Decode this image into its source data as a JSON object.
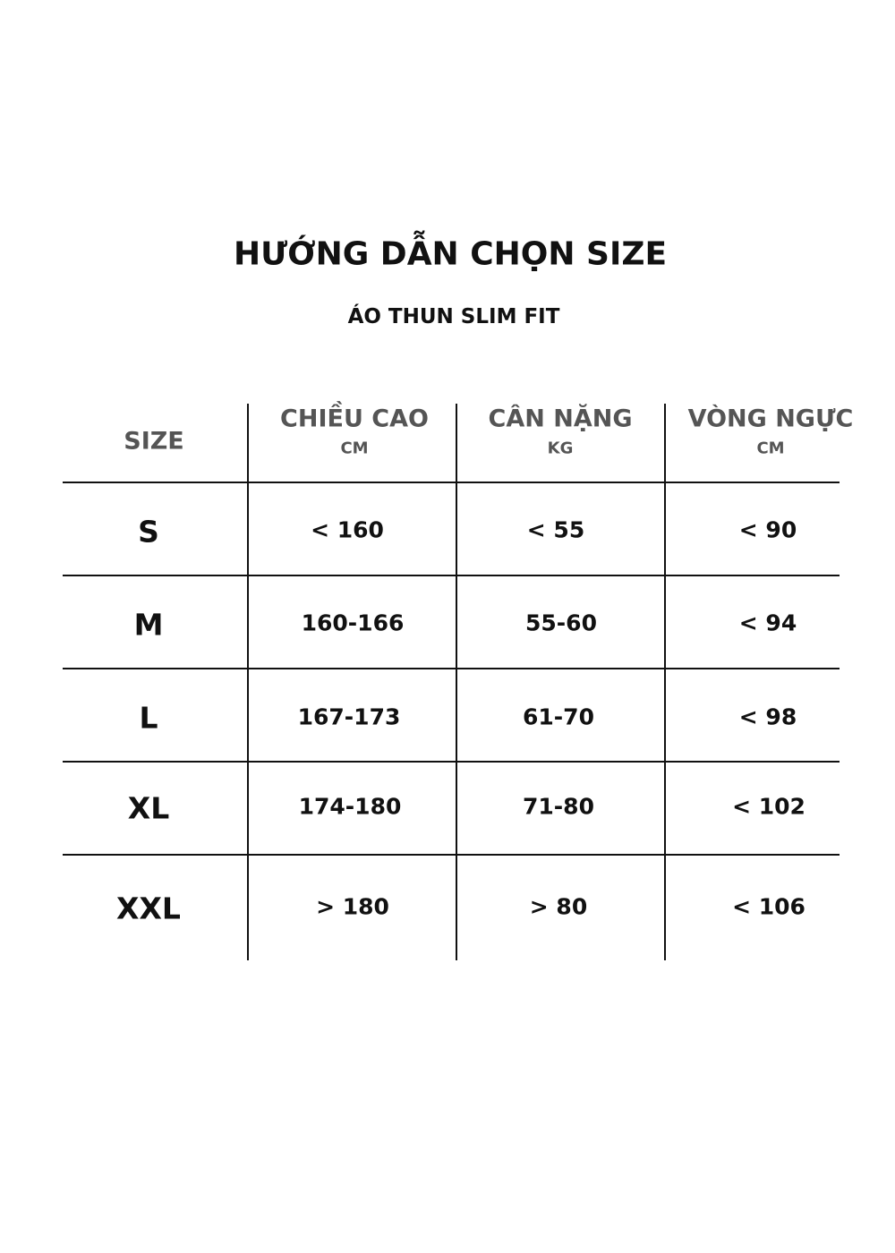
{
  "title": "HƯỚNG DẪN CHỌN SIZE",
  "subtitle": "ÁO THUN SLIM FIT",
  "table": {
    "headers": [
      {
        "label": "SIZE",
        "unit": ""
      },
      {
        "label": "CHIỀU CAO",
        "unit": "CM"
      },
      {
        "label": "CÂN NẶNG",
        "unit": "KG"
      },
      {
        "label": "VÒNG NGỰC",
        "unit": "CM"
      }
    ],
    "rows": [
      {
        "size": "S",
        "height": "< 160",
        "weight": "< 55",
        "chest": "< 90"
      },
      {
        "size": "M",
        "height": "160-166",
        "weight": "55-60",
        "chest": "< 94"
      },
      {
        "size": "L",
        "height": "167-173",
        "weight": "61-70",
        "chest": "< 98"
      },
      {
        "size": "XL",
        "height": "174-180",
        "weight": "71-80",
        "chest": "< 102"
      },
      {
        "size": "XXL",
        "height": "> 180",
        "weight": "> 80",
        "chest": "< 106"
      }
    ]
  }
}
